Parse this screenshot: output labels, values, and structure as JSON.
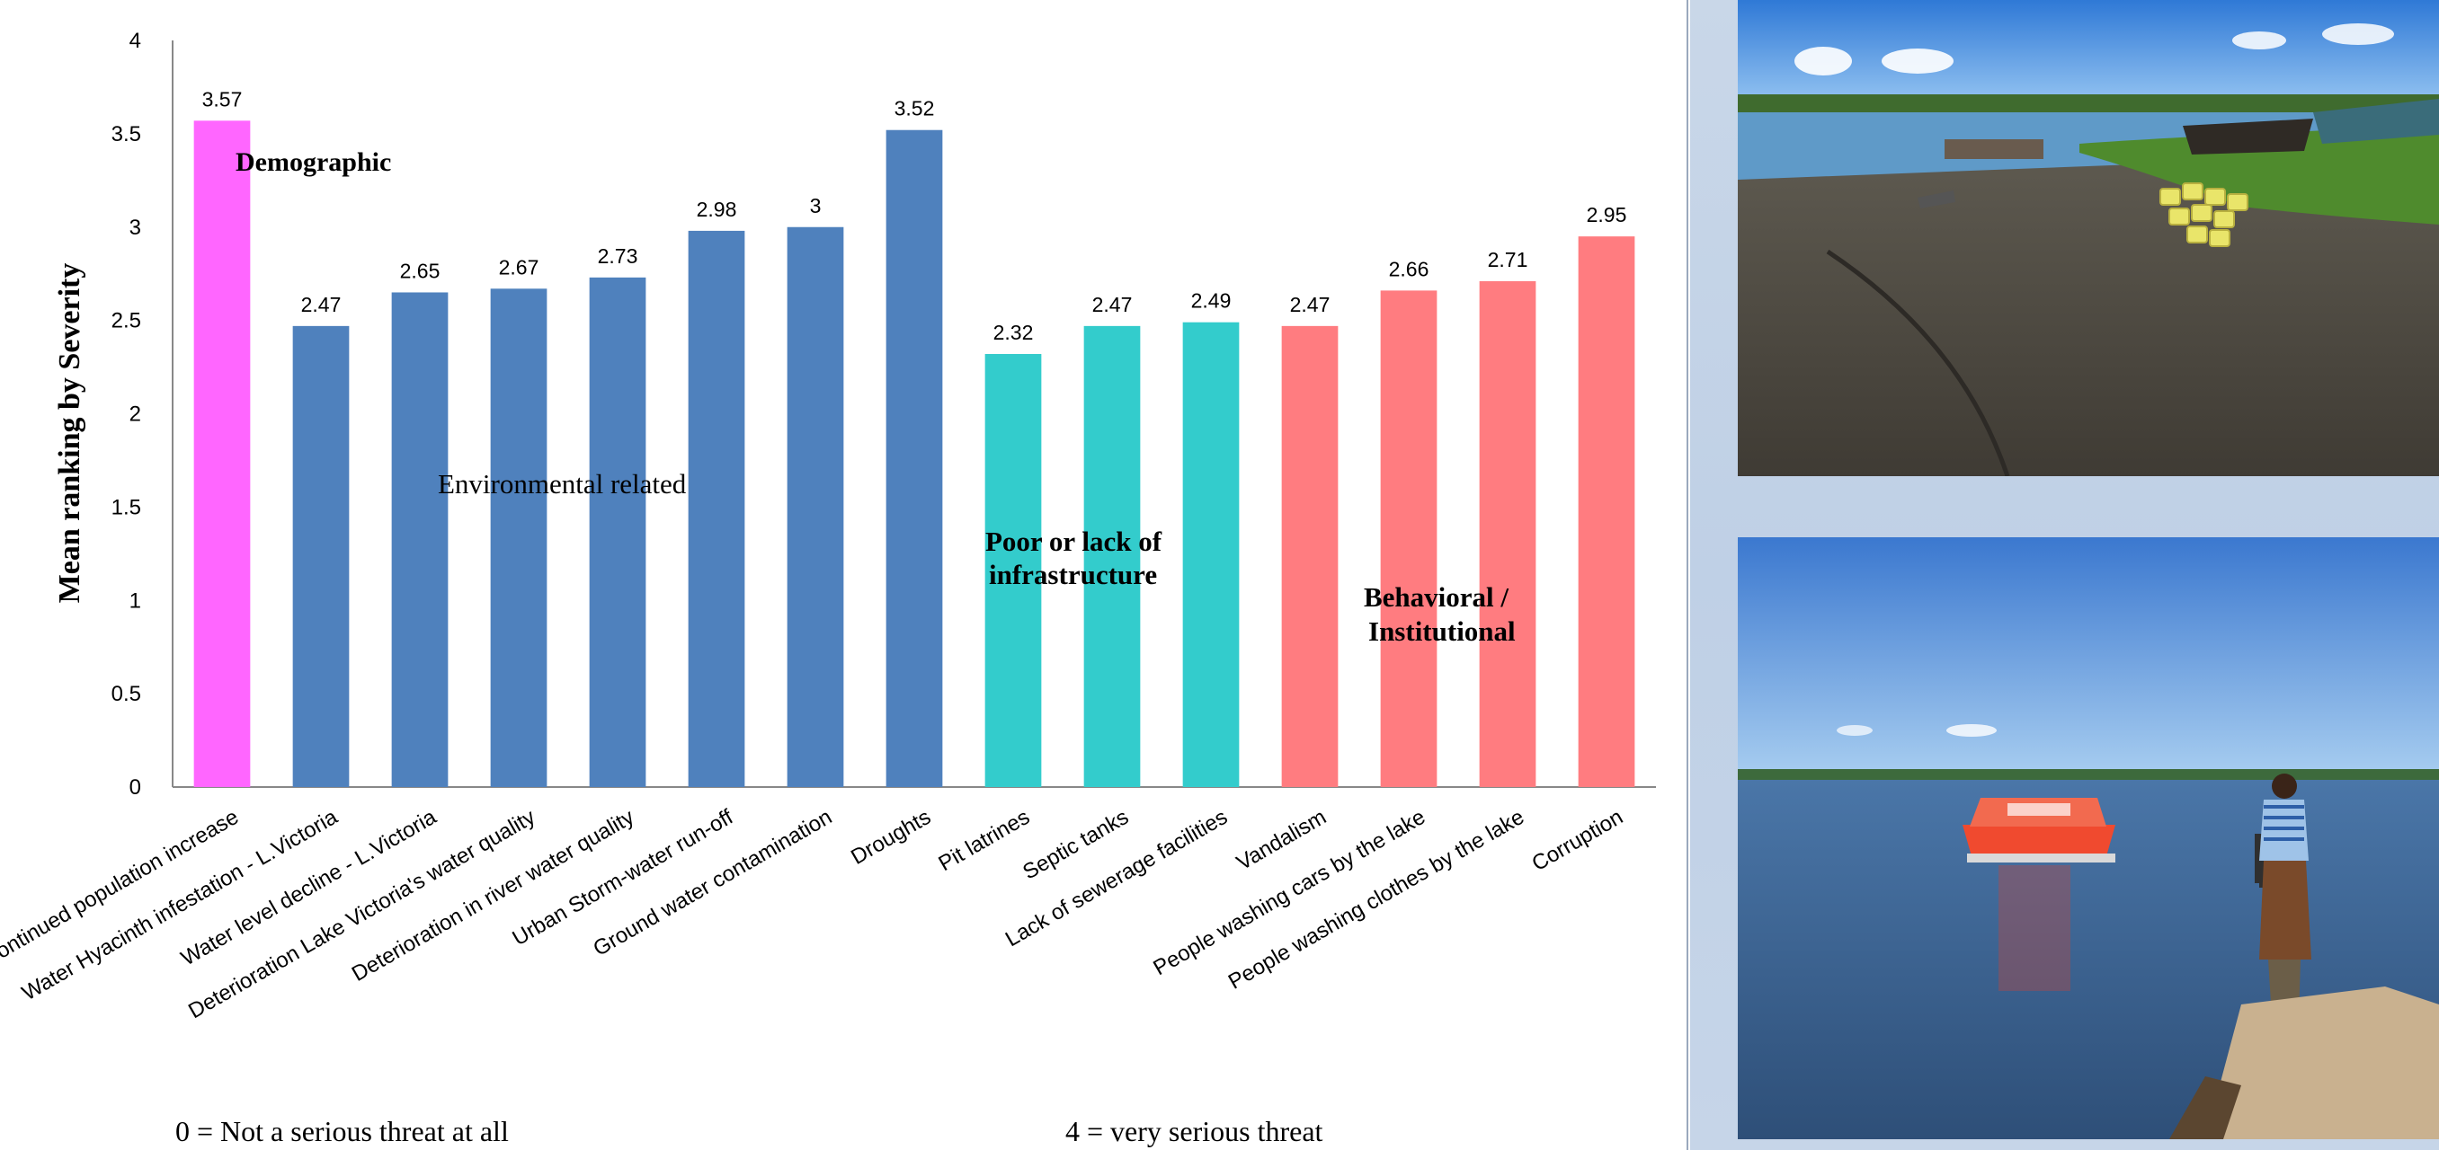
{
  "chart_data": {
    "type": "bar",
    "ylabel": "Mean ranking by Severity",
    "ylim": [
      0,
      4
    ],
    "yticks": [
      "0",
      "0.5",
      "1",
      "1.5",
      "2",
      "2.5",
      "3",
      "3.5",
      "4"
    ],
    "categories": [
      "Continued population increase",
      "Water Hyacinth infestation - L.Victoria",
      "Water level decline - L.Victoria",
      "Deterioration Lake Victoria's water quality",
      "Deterioration in river water quality",
      "Urban Storm-water run-off",
      "Ground water contamination",
      "Droughts",
      "Pit latrines",
      "Septic tanks",
      "Lack of sewerage facilities",
      "Vandalism",
      "People washing cars by the lake",
      "People washing clothes by the lake",
      "Corruption"
    ],
    "values": [
      3.57,
      2.47,
      2.65,
      2.67,
      2.73,
      2.98,
      3,
      3.52,
      2.32,
      2.47,
      2.49,
      2.47,
      2.66,
      2.71,
      2.95
    ],
    "value_labels": [
      "3.57",
      "2.47",
      "2.65",
      "2.67",
      "2.73",
      "2.98",
      "3",
      "3.52",
      "2.32",
      "2.47",
      "2.49",
      "2.47",
      "2.66",
      "2.71",
      "2.95"
    ],
    "groups": [
      {
        "name": "Demographic",
        "color": "#ff66ff",
        "count": 1
      },
      {
        "name": "Environmental related",
        "color": "#4f81bd",
        "count": 7
      },
      {
        "name": "Poor or lack of infrastructure",
        "color": "#33cccc",
        "count": 3
      },
      {
        "name": "Behavioral / Institutional",
        "color": "#ff7c80",
        "count": 4
      }
    ],
    "grid": false
  },
  "annotations": {
    "demographic": "Demographic",
    "environmental": "Environmental related",
    "infrastructure_line1": "Poor or lack of",
    "infrastructure_line2": "infrastructure",
    "behavioral_line1": "Behavioral  /",
    "behavioral_line2": "Institutional"
  },
  "scale_notes": {
    "low": "0 = Not a serious threat at all",
    "high": "4 = very serious threat"
  },
  "photos": {
    "top": "lakeshore-with-cattle-and-jerrycans",
    "bottom": "boat-on-lake-with-man-on-shore"
  }
}
